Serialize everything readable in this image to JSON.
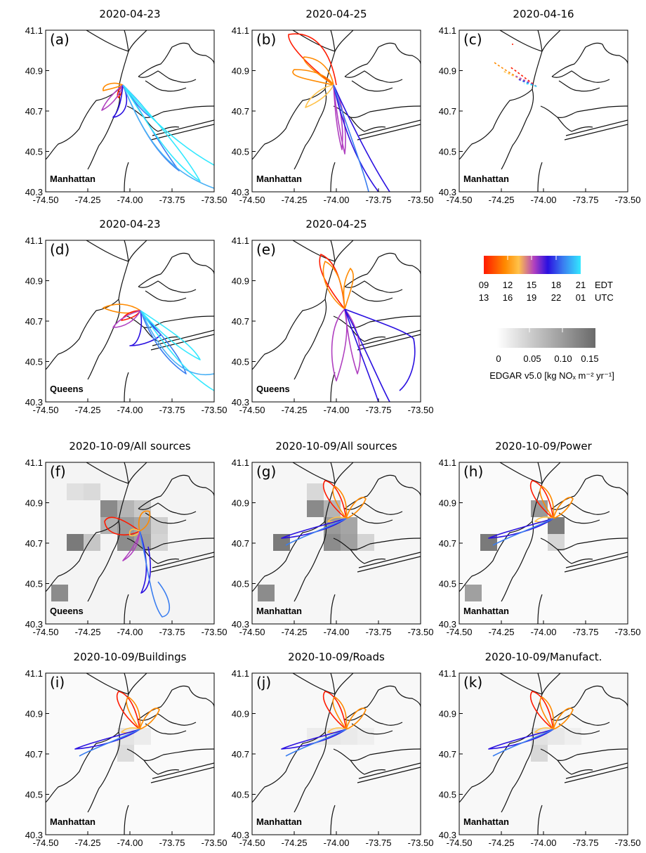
{
  "figure": {
    "xticks": [
      "-74.50",
      "-74.25",
      "-74.00",
      "-73.75",
      "-73.50"
    ],
    "yticks": [
      "41.1",
      "40.9",
      "40.7",
      "40.5",
      "40.3"
    ],
    "panels": [
      {
        "id": "a",
        "label": "(a)",
        "title": "2020-04-23",
        "city": "Manhattan"
      },
      {
        "id": "b",
        "label": "(b)",
        "title": "2020-04-25",
        "city": "Manhattan"
      },
      {
        "id": "c",
        "label": "(c)",
        "title": "2020-04-16",
        "city": "Manhattan"
      },
      {
        "id": "d",
        "label": "(d)",
        "title": "2020-04-23",
        "city": "Queens"
      },
      {
        "id": "e",
        "label": "(e)",
        "title": "2020-04-25",
        "city": "Queens"
      },
      {
        "id": "f",
        "label": "(f)",
        "title": "2020-10-09/All sources",
        "city": "Queens"
      },
      {
        "id": "g",
        "label": "(g)",
        "title": "2020-10-09/All sources",
        "city": "Manhattan"
      },
      {
        "id": "h",
        "label": "(h)",
        "title": "2020-10-09/Power",
        "city": "Manhattan"
      },
      {
        "id": "i",
        "label": "(i)",
        "title": "2020-10-09/Buildings",
        "city": "Manhattan"
      },
      {
        "id": "j",
        "label": "(j)",
        "title": "2020-10-09/Roads",
        "city": "Manhattan"
      },
      {
        "id": "k",
        "label": "(k)",
        "title": "2020-10-09/Manufact.",
        "city": "Manhattan"
      }
    ]
  },
  "time_colorbar": {
    "edt_labels": [
      "09",
      "12",
      "15",
      "18",
      "21"
    ],
    "utc_labels": [
      "13",
      "16",
      "19",
      "22",
      "01"
    ],
    "edt_unit": "EDT",
    "utc_unit": "UTC",
    "colors": [
      "#ff1a00",
      "#ff8a00",
      "#ffc24a",
      "#b040c0",
      "#2a10e0",
      "#3a7ef0",
      "#33e8ff"
    ]
  },
  "emission_colorbar": {
    "ticks": [
      "0",
      "0.05",
      "0.10",
      "0.15"
    ],
    "label": "EDGAR v5.0 [kg NOₓ m⁻² yr⁻¹]"
  }
}
